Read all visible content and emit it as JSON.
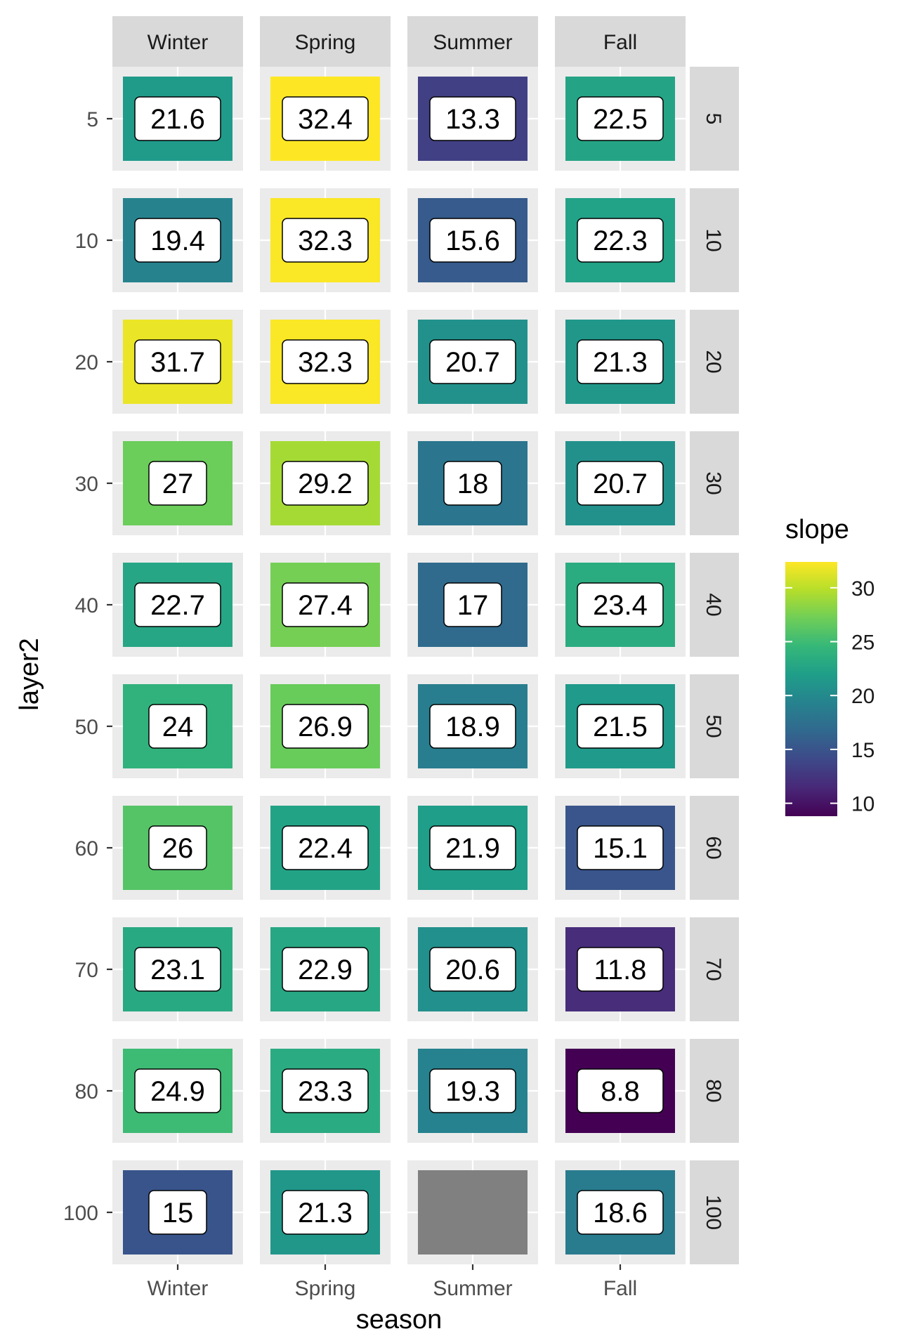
{
  "chart_data": {
    "type": "heatmap",
    "facet_columns": [
      "Winter",
      "Spring",
      "Summer",
      "Fall"
    ],
    "facet_rows": [
      "5",
      "10",
      "20",
      "30",
      "40",
      "50",
      "60",
      "70",
      "80",
      "100"
    ],
    "x_ticks": [
      "Winter",
      "Spring",
      "Summer",
      "Fall"
    ],
    "y_ticks": [
      "5",
      "10",
      "20",
      "30",
      "40",
      "50",
      "60",
      "70",
      "80",
      "100"
    ],
    "xlabel": "season",
    "ylabel": "layer2",
    "values": [
      [
        21.6,
        32.4,
        13.3,
        22.5
      ],
      [
        19.4,
        32.3,
        15.6,
        22.3
      ],
      [
        31.7,
        32.3,
        20.7,
        21.3
      ],
      [
        27,
        29.2,
        18,
        20.7
      ],
      [
        22.7,
        27.4,
        17,
        23.4
      ],
      [
        24,
        26.9,
        18.9,
        21.5
      ],
      [
        26,
        22.4,
        21.9,
        15.1
      ],
      [
        23.1,
        22.9,
        20.6,
        11.8
      ],
      [
        24.9,
        23.3,
        19.3,
        8.8
      ],
      [
        15,
        21.3,
        null,
        18.6
      ]
    ],
    "labels": [
      [
        "21.6",
        "32.4",
        "13.3",
        "22.5"
      ],
      [
        "19.4",
        "32.3",
        "15.6",
        "22.3"
      ],
      [
        "31.7",
        "32.3",
        "20.7",
        "21.3"
      ],
      [
        "27",
        "29.2",
        "18",
        "20.7"
      ],
      [
        "22.7",
        "27.4",
        "17",
        "23.4"
      ],
      [
        "24",
        "26.9",
        "18.9",
        "21.5"
      ],
      [
        "26",
        "22.4",
        "21.9",
        "15.1"
      ],
      [
        "23.1",
        "22.9",
        "20.6",
        "11.8"
      ],
      [
        "24.9",
        "23.3",
        "19.3",
        "8.8"
      ],
      [
        "15",
        "21.3",
        "",
        "18.6"
      ]
    ],
    "legend": {
      "title": "slope",
      "ticks": [
        "30",
        "25",
        "20",
        "15",
        "10"
      ],
      "tick_values": [
        30,
        25,
        20,
        15,
        10
      ],
      "range": [
        8.8,
        32.4
      ],
      "palette": "viridis",
      "placement": "right"
    },
    "na_color": "#808080",
    "panel_background": "#ebebeb",
    "strip_background": "#d9d9d9"
  }
}
